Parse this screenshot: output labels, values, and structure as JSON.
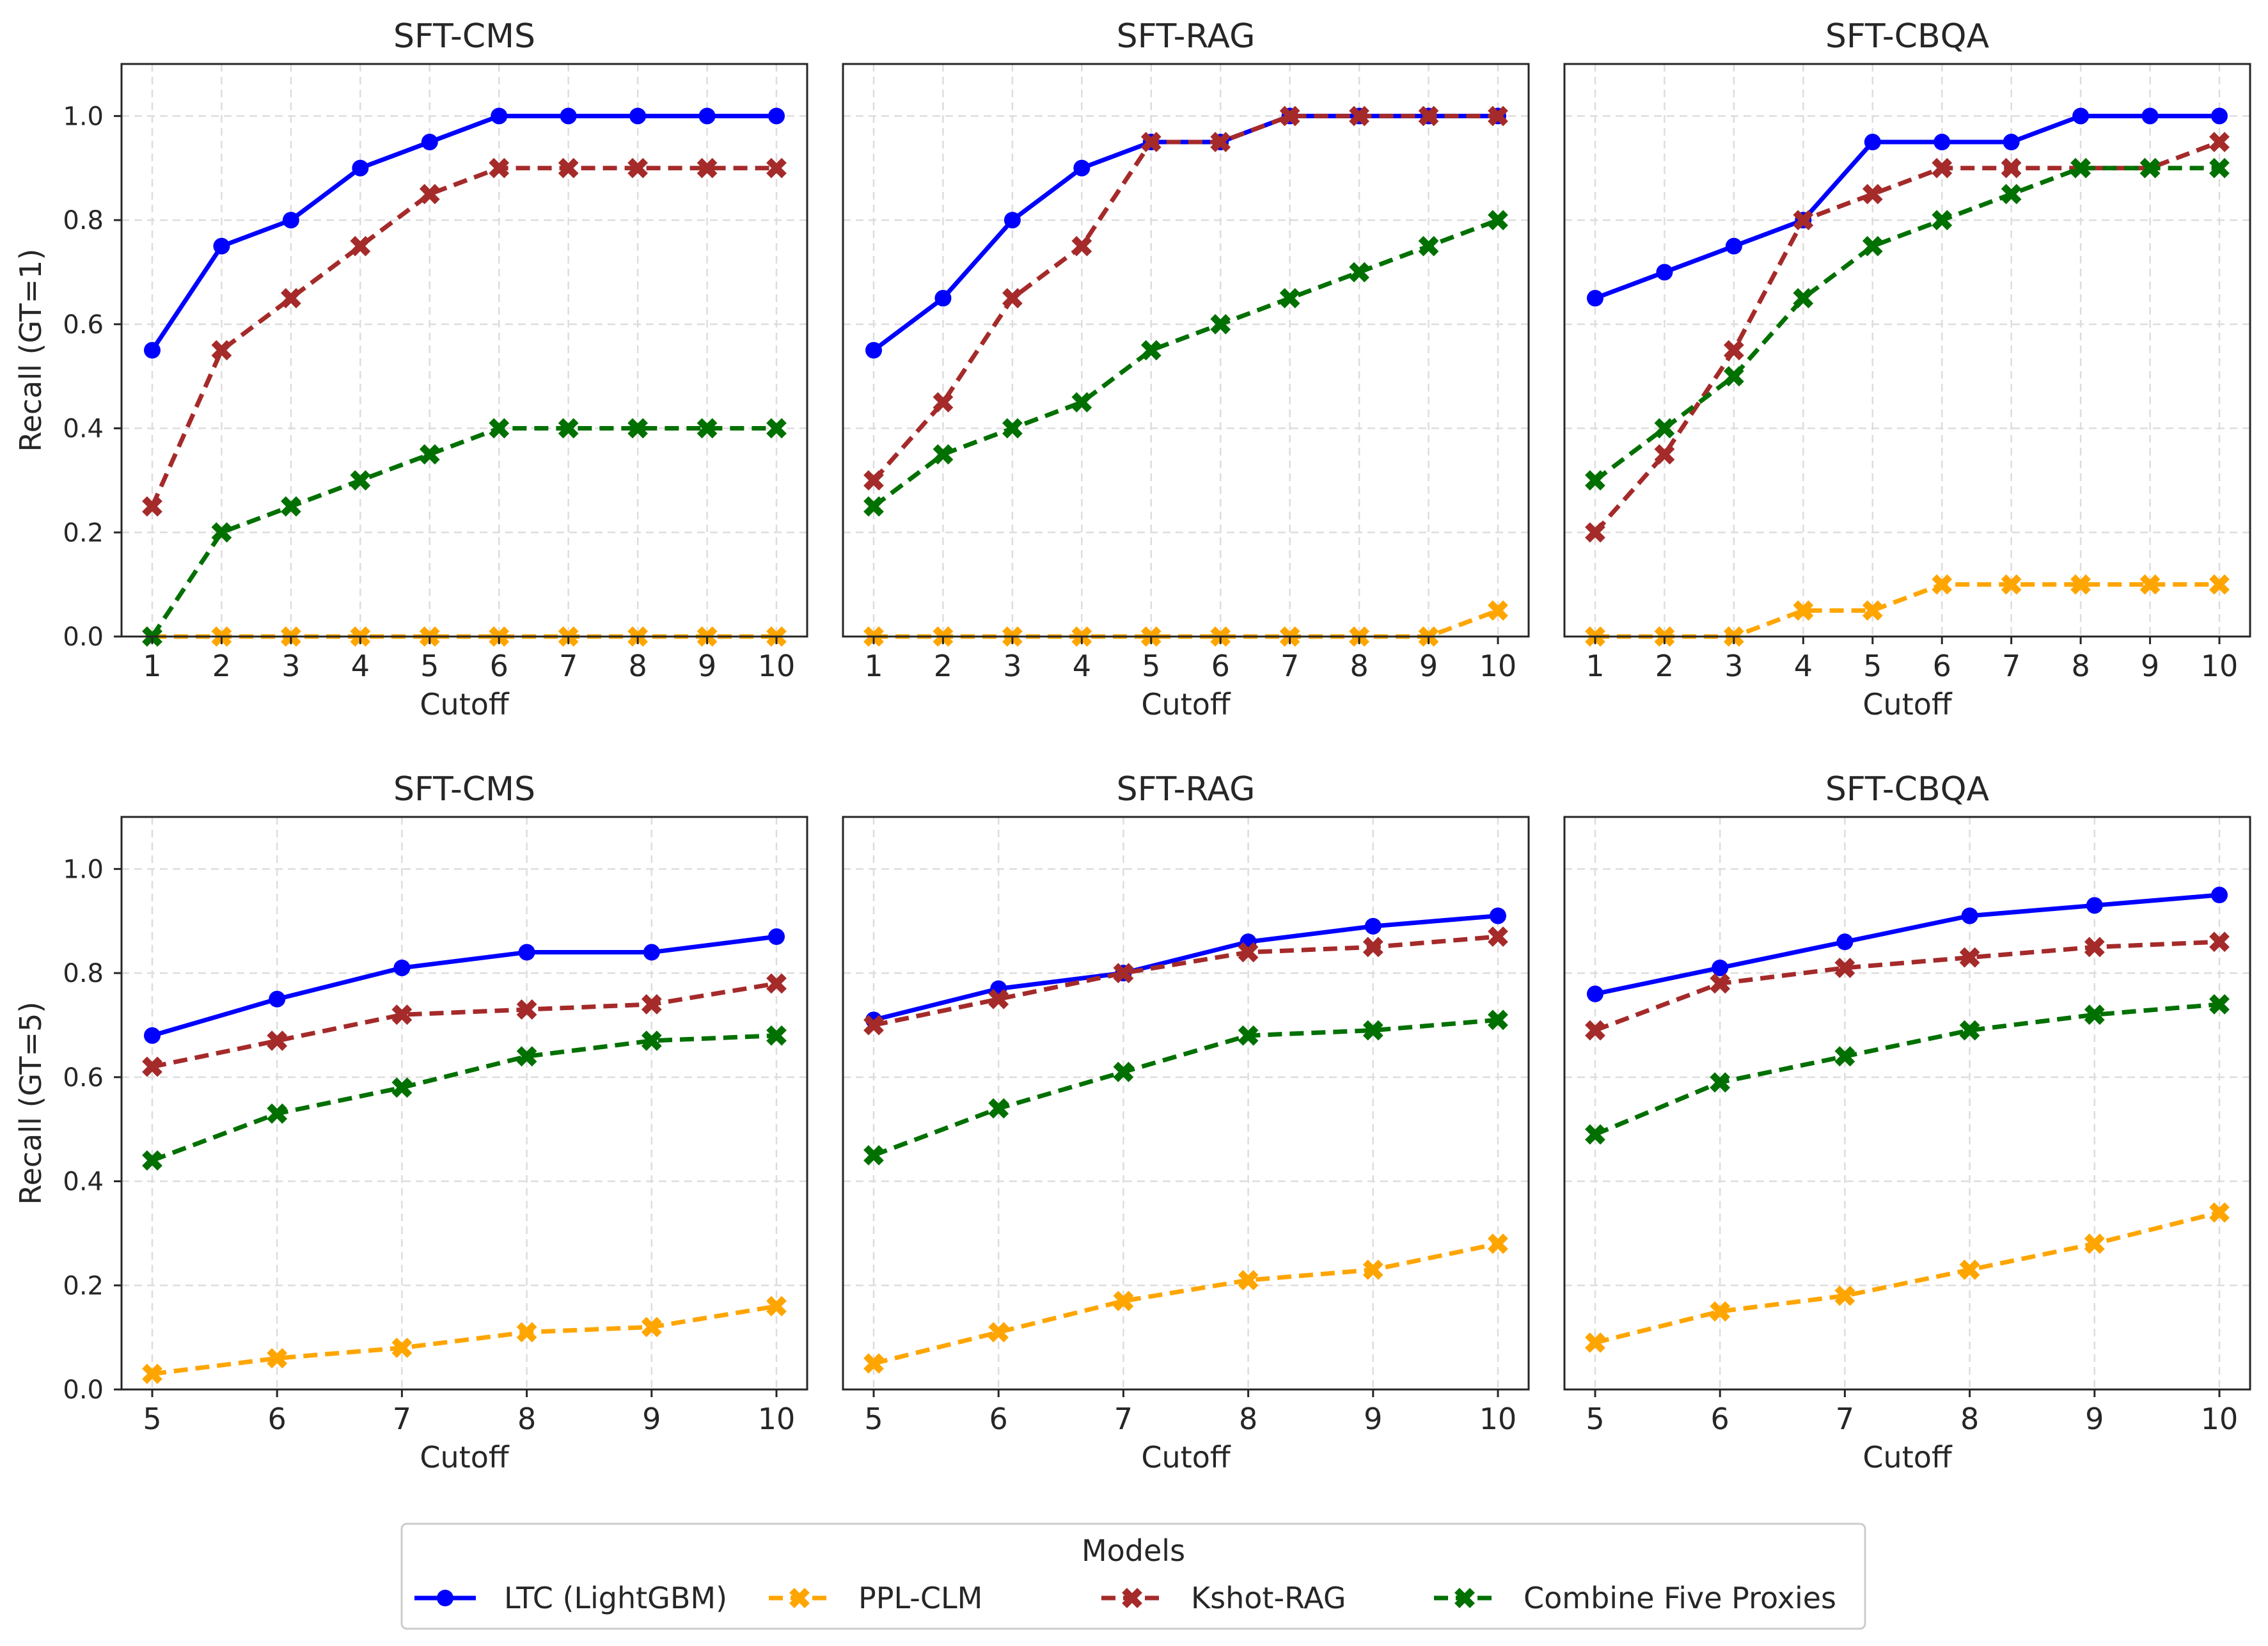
{
  "colors": {
    "LTC (LightGBM)": "#0000ff",
    "PPL-CLM": "#ffa500",
    "Kshot-RAG": "#a52a2a",
    "Combine Five Proxies": "#007000"
  },
  "chart_data": [
    {
      "type": "line",
      "title": "SFT-CMS",
      "xlabel": "Cutoff",
      "ylabel": "Recall (GT=1)",
      "x": [
        1,
        2,
        3,
        4,
        5,
        6,
        7,
        8,
        9,
        10
      ],
      "ylim": [
        0,
        1.1
      ],
      "yticks": [
        "0.0",
        "0.2",
        "0.4",
        "0.6",
        "0.8",
        "1.0"
      ],
      "grid": true,
      "series": [
        {
          "name": "LTC (LightGBM)",
          "values": [
            0.55,
            0.75,
            0.8,
            0.9,
            0.95,
            1.0,
            1.0,
            1.0,
            1.0,
            1.0
          ]
        },
        {
          "name": "PPL-CLM",
          "values": [
            0,
            0,
            0,
            0,
            0,
            0,
            0,
            0,
            0,
            0
          ]
        },
        {
          "name": "Kshot-RAG",
          "values": [
            0.25,
            0.55,
            0.65,
            0.75,
            0.85,
            0.9,
            0.9,
            0.9,
            0.9,
            0.9
          ]
        },
        {
          "name": "Combine Five Proxies",
          "values": [
            0,
            0.2,
            0.25,
            0.3,
            0.35,
            0.4,
            0.4,
            0.4,
            0.4,
            0.4
          ]
        }
      ]
    },
    {
      "type": "line",
      "title": "SFT-RAG",
      "xlabel": "Cutoff",
      "ylabel": "",
      "x": [
        1,
        2,
        3,
        4,
        5,
        6,
        7,
        8,
        9,
        10
      ],
      "ylim": [
        0,
        1.1
      ],
      "yticks": [],
      "grid": true,
      "series": [
        {
          "name": "LTC (LightGBM)",
          "values": [
            0.55,
            0.65,
            0.8,
            0.9,
            0.95,
            0.95,
            1.0,
            1.0,
            1.0,
            1.0
          ]
        },
        {
          "name": "PPL-CLM",
          "values": [
            0,
            0,
            0,
            0,
            0,
            0,
            0,
            0,
            0,
            0.05
          ]
        },
        {
          "name": "Kshot-RAG",
          "values": [
            0.3,
            0.45,
            0.65,
            0.75,
            0.95,
            0.95,
            1.0,
            1.0,
            1.0,
            1.0
          ]
        },
        {
          "name": "Combine Five Proxies",
          "values": [
            0.25,
            0.35,
            0.4,
            0.45,
            0.55,
            0.6,
            0.65,
            0.7,
            0.75,
            0.8
          ]
        }
      ]
    },
    {
      "type": "line",
      "title": "SFT-CBQA",
      "xlabel": "Cutoff",
      "ylabel": "",
      "x": [
        1,
        2,
        3,
        4,
        5,
        6,
        7,
        8,
        9,
        10
      ],
      "ylim": [
        0,
        1.1
      ],
      "yticks": [],
      "grid": true,
      "series": [
        {
          "name": "LTC (LightGBM)",
          "values": [
            0.65,
            0.7,
            0.75,
            0.8,
            0.95,
            0.95,
            0.95,
            1.0,
            1.0,
            1.0
          ]
        },
        {
          "name": "PPL-CLM",
          "values": [
            0,
            0,
            0,
            0.05,
            0.05,
            0.1,
            0.1,
            0.1,
            0.1,
            0.1
          ]
        },
        {
          "name": "Kshot-RAG",
          "values": [
            0.2,
            0.35,
            0.55,
            0.8,
            0.85,
            0.9,
            0.9,
            0.9,
            0.9,
            0.95
          ]
        },
        {
          "name": "Combine Five Proxies",
          "values": [
            0.3,
            0.4,
            0.5,
            0.65,
            0.75,
            0.8,
            0.85,
            0.9,
            0.9,
            0.9
          ]
        }
      ]
    },
    {
      "type": "line",
      "title": "SFT-CMS",
      "xlabel": "Cutoff",
      "ylabel": "Recall (GT=5)",
      "x": [
        5,
        6,
        7,
        8,
        9,
        10
      ],
      "ylim": [
        0,
        1.1
      ],
      "yticks": [
        "0.0",
        "0.2",
        "0.4",
        "0.6",
        "0.8",
        "1.0"
      ],
      "grid": true,
      "series": [
        {
          "name": "LTC (LightGBM)",
          "values": [
            0.68,
            0.75,
            0.81,
            0.84,
            0.84,
            0.87
          ]
        },
        {
          "name": "PPL-CLM",
          "values": [
            0.03,
            0.06,
            0.08,
            0.11,
            0.12,
            0.16
          ]
        },
        {
          "name": "Kshot-RAG",
          "values": [
            0.62,
            0.67,
            0.72,
            0.73,
            0.74,
            0.78
          ]
        },
        {
          "name": "Combine Five Proxies",
          "values": [
            0.44,
            0.53,
            0.58,
            0.64,
            0.67,
            0.68
          ]
        }
      ]
    },
    {
      "type": "line",
      "title": "SFT-RAG",
      "xlabel": "Cutoff",
      "ylabel": "",
      "x": [
        5,
        6,
        7,
        8,
        9,
        10
      ],
      "ylim": [
        0,
        1.1
      ],
      "yticks": [],
      "grid": true,
      "series": [
        {
          "name": "LTC (LightGBM)",
          "values": [
            0.71,
            0.77,
            0.8,
            0.86,
            0.89,
            0.91
          ]
        },
        {
          "name": "PPL-CLM",
          "values": [
            0.05,
            0.11,
            0.17,
            0.21,
            0.23,
            0.28
          ]
        },
        {
          "name": "Kshot-RAG",
          "values": [
            0.7,
            0.75,
            0.8,
            0.84,
            0.85,
            0.87
          ]
        },
        {
          "name": "Combine Five Proxies",
          "values": [
            0.45,
            0.54,
            0.61,
            0.68,
            0.69,
            0.71
          ]
        }
      ]
    },
    {
      "type": "line",
      "title": "SFT-CBQA",
      "xlabel": "Cutoff",
      "ylabel": "",
      "x": [
        5,
        6,
        7,
        8,
        9,
        10
      ],
      "ylim": [
        0,
        1.1
      ],
      "yticks": [],
      "grid": true,
      "series": [
        {
          "name": "LTC (LightGBM)",
          "values": [
            0.76,
            0.81,
            0.86,
            0.91,
            0.93,
            0.95
          ]
        },
        {
          "name": "PPL-CLM",
          "values": [
            0.09,
            0.15,
            0.18,
            0.23,
            0.28,
            0.34
          ]
        },
        {
          "name": "Kshot-RAG",
          "values": [
            0.69,
            0.78,
            0.81,
            0.83,
            0.85,
            0.86
          ]
        },
        {
          "name": "Combine Five Proxies",
          "values": [
            0.49,
            0.59,
            0.64,
            0.69,
            0.72,
            0.74
          ]
        }
      ]
    }
  ],
  "legend": {
    "title": "Models",
    "position": "bottom-center",
    "entries": [
      "LTC (LightGBM)",
      "PPL-CLM",
      "Kshot-RAG",
      "Combine Five Proxies"
    ]
  }
}
